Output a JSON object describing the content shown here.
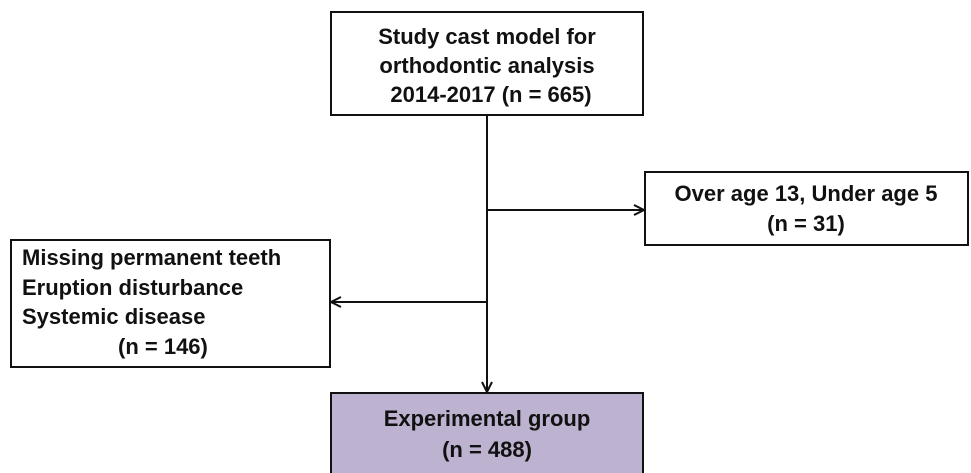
{
  "nodes": [
    {
      "lines": [
        "Study cast model for",
        "orthodontic analysis",
        "2014-2017 (n = 665)"
      ]
    },
    {
      "lines": [
        "Over age 13, Under age 5",
        "(n = 31)"
      ]
    },
    {
      "lines": [
        "Missing permanent teeth",
        "Eruption disturbance",
        "Systemic disease",
        "(n = 146)"
      ]
    },
    {
      "lines": [
        "Experimental group",
        "(n = 488)"
      ]
    }
  ]
}
